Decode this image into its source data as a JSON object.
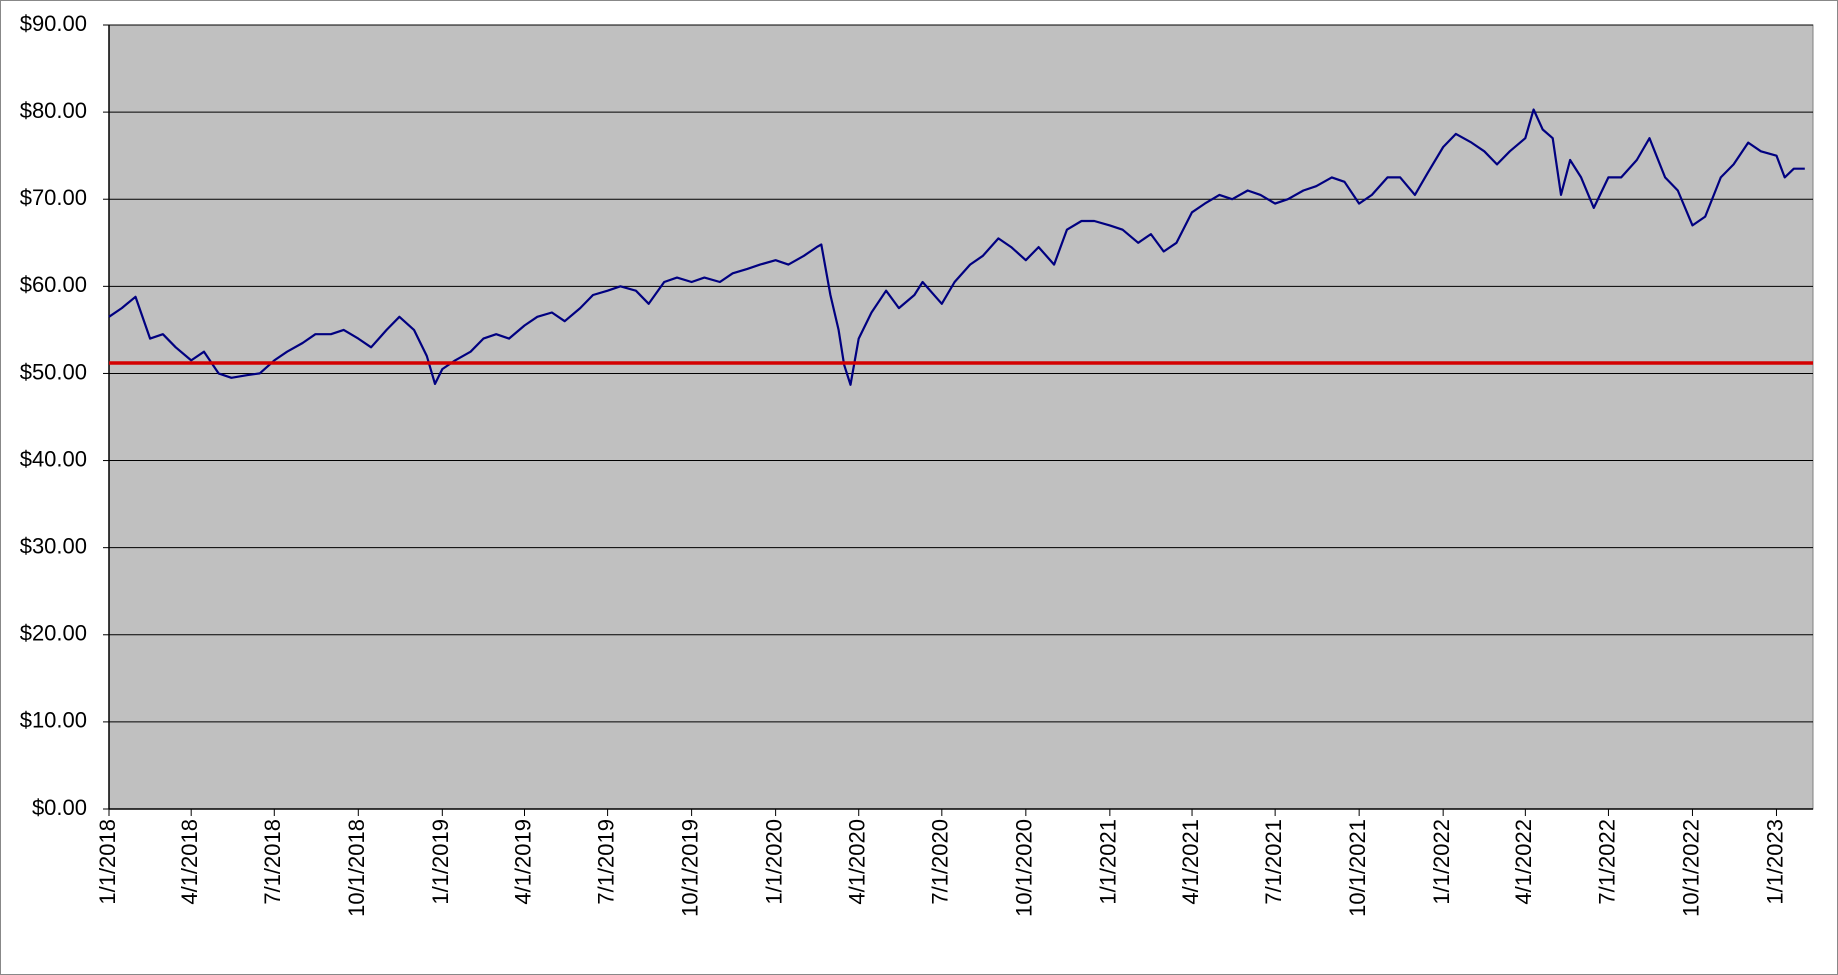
{
  "chart_data": {
    "type": "line",
    "x": [
      "2018-01-01",
      "2018-01-15",
      "2018-01-30",
      "2018-02-15",
      "2018-03-01",
      "2018-03-15",
      "2018-04-01",
      "2018-04-15",
      "2018-05-01",
      "2018-05-15",
      "2018-06-01",
      "2018-06-15",
      "2018-07-01",
      "2018-07-15",
      "2018-08-01",
      "2018-08-15",
      "2018-09-01",
      "2018-09-15",
      "2018-10-01",
      "2018-10-15",
      "2018-11-01",
      "2018-11-15",
      "2018-12-01",
      "2018-12-15",
      "2018-12-24",
      "2019-01-01",
      "2019-01-15",
      "2019-02-01",
      "2019-02-15",
      "2019-03-01",
      "2019-03-15",
      "2019-04-01",
      "2019-04-15",
      "2019-05-01",
      "2019-05-15",
      "2019-06-01",
      "2019-06-15",
      "2019-07-01",
      "2019-07-15",
      "2019-08-01",
      "2019-08-15",
      "2019-09-01",
      "2019-09-15",
      "2019-10-01",
      "2019-10-15",
      "2019-11-01",
      "2019-11-15",
      "2019-12-01",
      "2019-12-15",
      "2020-01-01",
      "2020-01-15",
      "2020-02-01",
      "2020-02-15",
      "2020-02-20",
      "2020-03-01",
      "2020-03-10",
      "2020-03-16",
      "2020-03-23",
      "2020-04-01",
      "2020-04-15",
      "2020-05-01",
      "2020-05-15",
      "2020-06-01",
      "2020-06-10",
      "2020-07-01",
      "2020-07-15",
      "2020-08-01",
      "2020-08-15",
      "2020-09-01",
      "2020-09-15",
      "2020-10-01",
      "2020-10-15",
      "2020-11-01",
      "2020-11-15",
      "2020-12-01",
      "2020-12-15",
      "2021-01-01",
      "2021-01-15",
      "2021-02-01",
      "2021-02-15",
      "2021-03-01",
      "2021-03-15",
      "2021-04-01",
      "2021-04-15",
      "2021-05-01",
      "2021-05-15",
      "2021-06-01",
      "2021-06-15",
      "2021-07-01",
      "2021-07-15",
      "2021-08-01",
      "2021-08-15",
      "2021-09-01",
      "2021-09-15",
      "2021-10-01",
      "2021-10-15",
      "2021-11-01",
      "2021-11-15",
      "2021-12-01",
      "2021-12-15",
      "2022-01-01",
      "2022-01-15",
      "2022-02-01",
      "2022-02-15",
      "2022-03-01",
      "2022-03-15",
      "2022-04-01",
      "2022-04-10",
      "2022-04-20",
      "2022-05-01",
      "2022-05-10",
      "2022-05-20",
      "2022-06-01",
      "2022-06-15",
      "2022-07-01",
      "2022-07-15",
      "2022-08-01",
      "2022-08-15",
      "2022-09-01",
      "2022-09-15",
      "2022-10-01",
      "2022-10-15",
      "2022-11-01",
      "2022-11-15",
      "2022-12-01",
      "2022-12-15",
      "2023-01-01",
      "2023-01-10",
      "2023-01-20",
      "2023-02-01"
    ],
    "series": [
      {
        "color": "#000080",
        "values": [
          56.5,
          57.5,
          58.8,
          54,
          54.5,
          53,
          51.5,
          52.5,
          50,
          49.5,
          49.8,
          50,
          51.5,
          52.5,
          53.5,
          54.5,
          54.5,
          55,
          54,
          53,
          55,
          56.5,
          55,
          52,
          48.8,
          50.5,
          51.5,
          52.5,
          54,
          54.5,
          54,
          55.5,
          56.5,
          57,
          56,
          57.5,
          59,
          59.5,
          60,
          59.5,
          58,
          60.5,
          61,
          60.5,
          61,
          60.5,
          61.5,
          62,
          62.5,
          63,
          62.5,
          63.5,
          64.5,
          64.8,
          59,
          55,
          51,
          48.7,
          54,
          57,
          59.5,
          57.5,
          59,
          60.5,
          58,
          60.5,
          62.5,
          63.5,
          65.5,
          64.5,
          63,
          64.5,
          62.5,
          66.5,
          67.5,
          67.5,
          67,
          66.5,
          65,
          66,
          64,
          65,
          68.5,
          69.5,
          70.5,
          70,
          71,
          70.5,
          69.5,
          70,
          71,
          71.5,
          72.5,
          72,
          69.5,
          70.5,
          72.5,
          72.5,
          70.5,
          73,
          76,
          77.5,
          76.5,
          75.5,
          74,
          75.5,
          77,
          80.3,
          78,
          77,
          70.5,
          74.5,
          72.5,
          69,
          72.5,
          72.5,
          74.5,
          77,
          72.5,
          71,
          67,
          68,
          72.5,
          74,
          76.5,
          75.5,
          75,
          72.5,
          73.5,
          73.5
        ]
      }
    ],
    "reference_line": {
      "value": 51.2,
      "color": "#d40000"
    },
    "xlim": [
      "2018-01-01",
      "2023-02-10"
    ],
    "xticks": [
      {
        "value": "2018-01-01",
        "label": "1/1/2018"
      },
      {
        "value": "2018-04-01",
        "label": "4/1/2018"
      },
      {
        "value": "2018-07-01",
        "label": "7/1/2018"
      },
      {
        "value": "2018-10-01",
        "label": "10/1/2018"
      },
      {
        "value": "2019-01-01",
        "label": "1/1/2019"
      },
      {
        "value": "2019-04-01",
        "label": "4/1/2019"
      },
      {
        "value": "2019-07-01",
        "label": "7/1/2019"
      },
      {
        "value": "2019-10-01",
        "label": "10/1/2019"
      },
      {
        "value": "2020-01-01",
        "label": "1/1/2020"
      },
      {
        "value": "2020-04-01",
        "label": "4/1/2020"
      },
      {
        "value": "2020-07-01",
        "label": "7/1/2020"
      },
      {
        "value": "2020-10-01",
        "label": "10/1/2020"
      },
      {
        "value": "2021-01-01",
        "label": "1/1/2021"
      },
      {
        "value": "2021-04-01",
        "label": "4/1/2021"
      },
      {
        "value": "2021-07-01",
        "label": "7/1/2021"
      },
      {
        "value": "2021-10-01",
        "label": "10/1/2021"
      },
      {
        "value": "2022-01-01",
        "label": "1/1/2022"
      },
      {
        "value": "2022-04-01",
        "label": "4/1/2022"
      },
      {
        "value": "2022-07-01",
        "label": "7/1/2022"
      },
      {
        "value": "2022-10-01",
        "label": "10/1/2022"
      },
      {
        "value": "2023-01-01",
        "label": "1/1/2023"
      }
    ],
    "ylim": [
      0,
      90
    ],
    "yticks": [
      {
        "value": 0,
        "label": "$0.00"
      },
      {
        "value": 10,
        "label": "$10.00"
      },
      {
        "value": 20,
        "label": "$20.00"
      },
      {
        "value": 30,
        "label": "$30.00"
      },
      {
        "value": 40,
        "label": "$40.00"
      },
      {
        "value": 50,
        "label": "$50.00"
      },
      {
        "value": 60,
        "label": "$60.00"
      },
      {
        "value": 70,
        "label": "$70.00"
      },
      {
        "value": 80,
        "label": "$80.00"
      },
      {
        "value": 90,
        "label": "$90.00"
      }
    ],
    "grid": true,
    "plot_background": "#c0c0c0"
  }
}
